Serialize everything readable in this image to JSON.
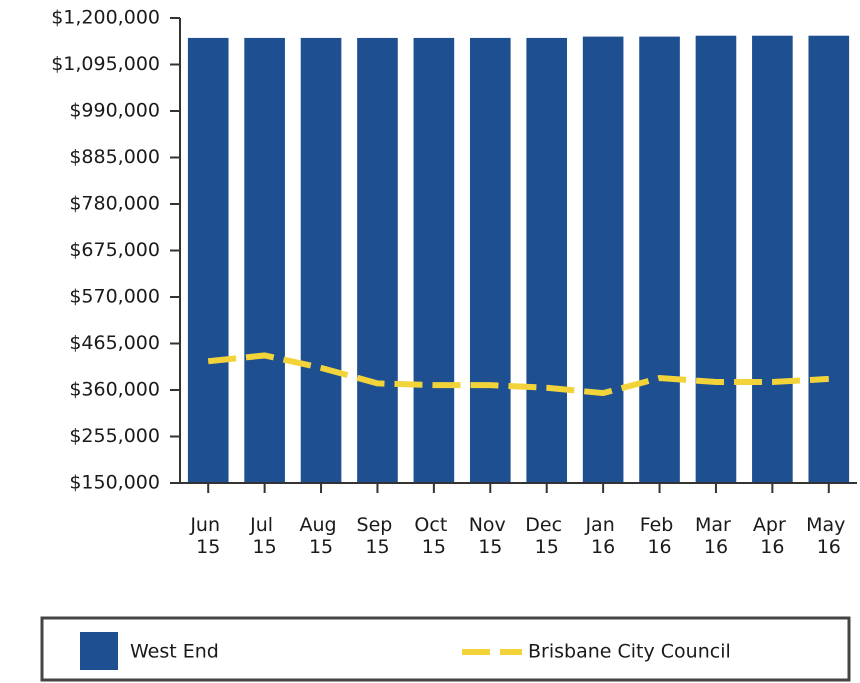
{
  "chart_data": {
    "type": "bar_line",
    "categories": [
      "Jun 15",
      "Jul 15",
      "Aug 15",
      "Sep 15",
      "Oct 15",
      "Nov 15",
      "Dec 15",
      "Jan 16",
      "Feb 16",
      "Mar 16",
      "Apr 16",
      "May 16"
    ],
    "series": [
      {
        "name": "West End",
        "type": "bar",
        "color": "#1d4f91",
        "values": [
          1155000,
          1155000,
          1155000,
          1155000,
          1155000,
          1155000,
          1155000,
          1158000,
          1158000,
          1160000,
          1160000,
          1160000
        ]
      },
      {
        "name": "Brisbane City Council",
        "type": "line",
        "color": "#f2d43a",
        "dashed": true,
        "values": [
          425000,
          438000,
          410000,
          375000,
          371000,
          371000,
          365000,
          353000,
          387000,
          378000,
          378000,
          385000
        ]
      }
    ],
    "ylim": [
      150000,
      1200000
    ],
    "yticks": [
      {
        "value": 150000,
        "label": "$150,000"
      },
      {
        "value": 255000,
        "label": "$255,000"
      },
      {
        "value": 360000,
        "label": "$360,000"
      },
      {
        "value": 465000,
        "label": "$465,000"
      },
      {
        "value": 570000,
        "label": "$570,000"
      },
      {
        "value": 675000,
        "label": "$675,000"
      },
      {
        "value": 780000,
        "label": "$780,000"
      },
      {
        "value": 885000,
        "label": "$885,000"
      },
      {
        "value": 990000,
        "label": "$990,000"
      },
      {
        "value": 1095000,
        "label": "$1,095,000"
      },
      {
        "value": 1200000,
        "label": "$1,200,000"
      }
    ],
    "grid": false,
    "legend": "bottom"
  }
}
